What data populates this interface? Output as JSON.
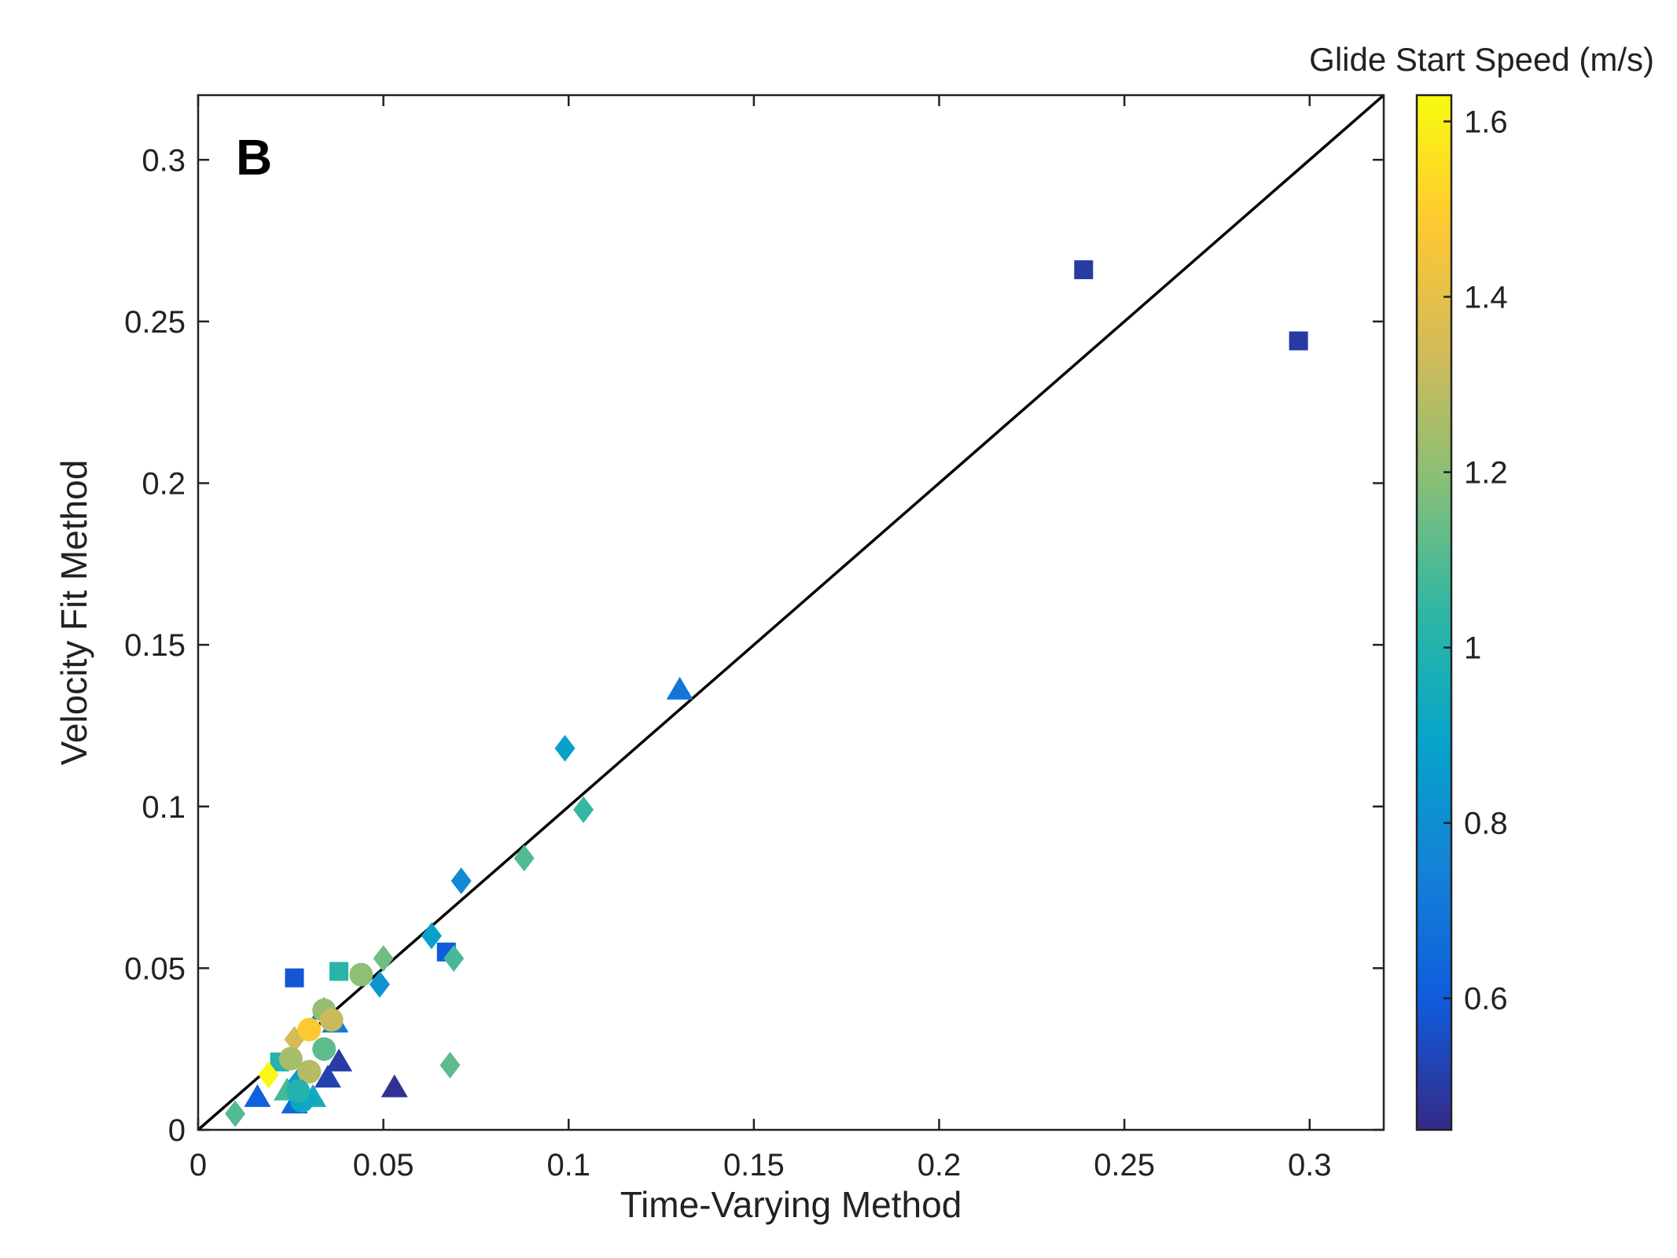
{
  "chart_data": {
    "type": "scatter",
    "panel_label": "B",
    "xlabel": "Time-Varying Method",
    "ylabel": "Velocity Fit Method",
    "xlim": [
      0,
      0.32
    ],
    "ylim": [
      0,
      0.32
    ],
    "xticks": [
      {
        "value": 0,
        "label": "0"
      },
      {
        "value": 0.05,
        "label": "0.05"
      },
      {
        "value": 0.1,
        "label": "0.1"
      },
      {
        "value": 0.15,
        "label": "0.15"
      },
      {
        "value": 0.2,
        "label": "0.2"
      },
      {
        "value": 0.25,
        "label": "0.25"
      },
      {
        "value": 0.3,
        "label": "0.3"
      }
    ],
    "yticks": [
      {
        "value": 0,
        "label": "0"
      },
      {
        "value": 0.05,
        "label": "0.05"
      },
      {
        "value": 0.1,
        "label": "0.1"
      },
      {
        "value": 0.15,
        "label": "0.15"
      },
      {
        "value": 0.2,
        "label": "0.2"
      },
      {
        "value": 0.25,
        "label": "0.25"
      },
      {
        "value": 0.3,
        "label": "0.3"
      }
    ],
    "grid": false,
    "identity_line": {
      "from": [
        0,
        0
      ],
      "to": [
        0.32,
        0.32
      ],
      "color": "#000000"
    },
    "colorbar": {
      "title": "Glide Start Speed (m/s)",
      "range": [
        0.45,
        1.63
      ],
      "ticks": [
        {
          "value": 0.6,
          "label": "0.6"
        },
        {
          "value": 0.8,
          "label": "0.8"
        },
        {
          "value": 1.0,
          "label": "1"
        },
        {
          "value": 1.2,
          "label": "1.2"
        },
        {
          "value": 1.4,
          "label": "1.4"
        },
        {
          "value": 1.6,
          "label": "1.6"
        }
      ],
      "colormap": [
        "#352a87",
        "#0f5cdd",
        "#1481d6",
        "#06a4ca",
        "#2eb7a4",
        "#87bf77",
        "#d1bb59",
        "#fec832",
        "#f9fb0e"
      ]
    },
    "points": [
      {
        "x": 0.239,
        "y": 0.266,
        "marker": "square",
        "c": 0.5
      },
      {
        "x": 0.297,
        "y": 0.244,
        "marker": "square",
        "c": 0.5
      },
      {
        "x": 0.026,
        "y": 0.047,
        "marker": "square",
        "c": 0.58
      },
      {
        "x": 0.038,
        "y": 0.049,
        "marker": "square",
        "c": 1.02
      },
      {
        "x": 0.067,
        "y": 0.055,
        "marker": "square",
        "c": 0.6
      },
      {
        "x": 0.022,
        "y": 0.021,
        "marker": "square",
        "c": 1.0
      },
      {
        "x": 0.13,
        "y": 0.136,
        "marker": "triangle",
        "c": 0.7
      },
      {
        "x": 0.053,
        "y": 0.013,
        "marker": "triangle",
        "c": 0.47
      },
      {
        "x": 0.038,
        "y": 0.021,
        "marker": "triangle",
        "c": 0.5
      },
      {
        "x": 0.016,
        "y": 0.01,
        "marker": "triangle",
        "c": 0.62
      },
      {
        "x": 0.026,
        "y": 0.008,
        "marker": "triangle",
        "c": 0.65
      },
      {
        "x": 0.035,
        "y": 0.016,
        "marker": "triangle",
        "c": 0.52
      },
      {
        "x": 0.037,
        "y": 0.033,
        "marker": "triangle",
        "c": 0.72
      },
      {
        "x": 0.034,
        "y": 0.037,
        "marker": "triangle",
        "c": 0.8
      },
      {
        "x": 0.024,
        "y": 0.012,
        "marker": "triangle",
        "c": 1.08
      },
      {
        "x": 0.031,
        "y": 0.01,
        "marker": "triangle",
        "c": 0.95
      },
      {
        "x": 0.099,
        "y": 0.118,
        "marker": "diamond",
        "c": 0.88
      },
      {
        "x": 0.104,
        "y": 0.099,
        "marker": "diamond",
        "c": 1.05
      },
      {
        "x": 0.088,
        "y": 0.084,
        "marker": "diamond",
        "c": 1.1
      },
      {
        "x": 0.071,
        "y": 0.077,
        "marker": "diamond",
        "c": 0.78
      },
      {
        "x": 0.063,
        "y": 0.06,
        "marker": "diamond",
        "c": 0.88
      },
      {
        "x": 0.049,
        "y": 0.045,
        "marker": "diamond",
        "c": 0.82
      },
      {
        "x": 0.05,
        "y": 0.053,
        "marker": "diamond",
        "c": 1.15
      },
      {
        "x": 0.069,
        "y": 0.053,
        "marker": "diamond",
        "c": 1.08
      },
      {
        "x": 0.068,
        "y": 0.02,
        "marker": "diamond",
        "c": 1.12
      },
      {
        "x": 0.01,
        "y": 0.005,
        "marker": "diamond",
        "c": 1.1
      },
      {
        "x": 0.019,
        "y": 0.017,
        "marker": "diamond",
        "c": 1.62
      },
      {
        "x": 0.029,
        "y": 0.01,
        "marker": "diamond",
        "c": 0.9
      },
      {
        "x": 0.027,
        "y": 0.015,
        "marker": "diamond",
        "c": 0.85
      },
      {
        "x": 0.026,
        "y": 0.028,
        "marker": "diamond",
        "c": 1.35
      },
      {
        "x": 0.044,
        "y": 0.048,
        "marker": "circle",
        "c": 1.2
      },
      {
        "x": 0.034,
        "y": 0.037,
        "marker": "circle",
        "c": 1.22
      },
      {
        "x": 0.036,
        "y": 0.034,
        "marker": "circle",
        "c": 1.32
      },
      {
        "x": 0.03,
        "y": 0.031,
        "marker": "circle",
        "c": 1.48
      },
      {
        "x": 0.034,
        "y": 0.025,
        "marker": "circle",
        "c": 1.12
      },
      {
        "x": 0.03,
        "y": 0.018,
        "marker": "circle",
        "c": 1.28
      },
      {
        "x": 0.025,
        "y": 0.022,
        "marker": "circle",
        "c": 1.25
      },
      {
        "x": 0.028,
        "y": 0.009,
        "marker": "circle",
        "c": 0.92
      },
      {
        "x": 0.027,
        "y": 0.012,
        "marker": "circle",
        "c": 1.0
      }
    ]
  }
}
